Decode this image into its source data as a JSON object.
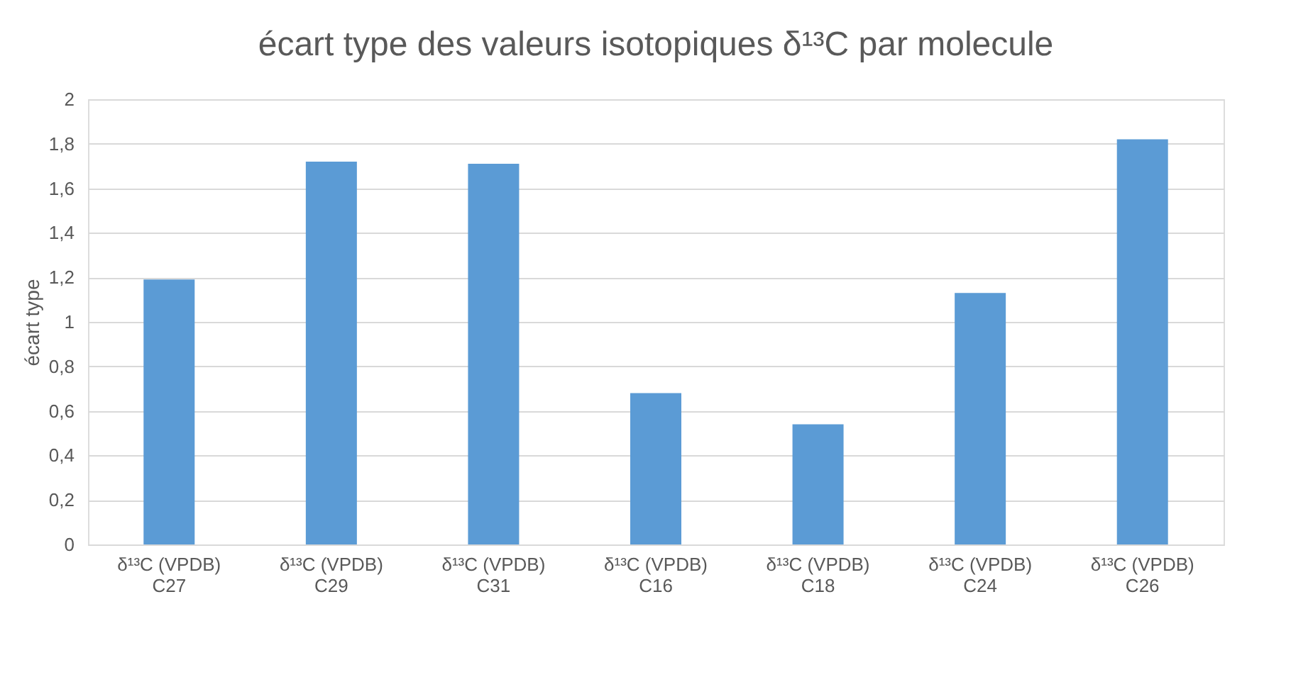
{
  "chart_data": {
    "type": "bar",
    "title": "écart type des valeurs isotopiques  δ¹³C par molecule",
    "ylabel": "écart type",
    "categories": [
      "δ¹³C (VPDB)\nC27",
      "δ¹³C (VPDB)\nC29",
      "δ¹³C (VPDB)\nC31",
      "δ¹³C (VPDB)\nC16",
      "δ¹³C (VPDB)\nC18",
      "δ¹³C (VPDB)\nC24",
      "δ¹³C (VPDB)\nC26"
    ],
    "values": [
      1.19,
      1.72,
      1.71,
      0.68,
      0.54,
      1.13,
      1.82
    ],
    "color": "#5b9bd5",
    "ylim": [
      0,
      2
    ],
    "yticks": [
      {
        "value": 0,
        "label": "0"
      },
      {
        "value": 0.2,
        "label": "0,2"
      },
      {
        "value": 0.4,
        "label": "0,4"
      },
      {
        "value": 0.6,
        "label": "0,6"
      },
      {
        "value": 0.8,
        "label": "0,8"
      },
      {
        "value": 1,
        "label": "1"
      },
      {
        "value": 1.2,
        "label": "1,2"
      },
      {
        "value": 1.4,
        "label": "1,4"
      },
      {
        "value": 1.6,
        "label": "1,6"
      },
      {
        "value": 1.8,
        "label": "1,8"
      },
      {
        "value": 2,
        "label": "2"
      }
    ],
    "grid": "y"
  }
}
